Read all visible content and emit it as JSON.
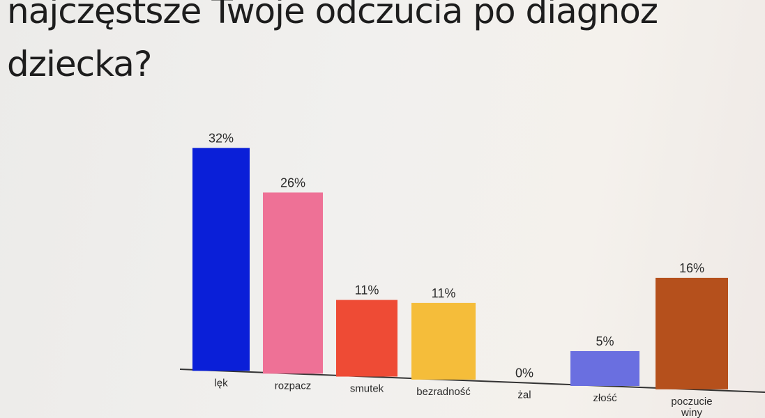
{
  "title_line1": "najczęstsze Twoje odczucia po diagnoz",
  "title_line2": "dziecka?",
  "chart_data": {
    "type": "bar",
    "title": "najczęstsze Twoje odczucia po diagnoz dziecka?",
    "categories": [
      "lęk",
      "rozpacz",
      "smutek",
      "bezradność",
      "żal",
      "złość",
      "poczucie winy"
    ],
    "category_lines": [
      [
        "lęk"
      ],
      [
        "rozpacz"
      ],
      [
        "smutek"
      ],
      [
        "bezradność"
      ],
      [
        "żal"
      ],
      [
        "złość"
      ],
      [
        "poczucie",
        "winy"
      ]
    ],
    "values": [
      32,
      26,
      11,
      11,
      0,
      5,
      16
    ],
    "value_labels": [
      "32%",
      "26%",
      "11%",
      "11%",
      "0%",
      "5%",
      "16%"
    ],
    "colors": [
      "#0a1fd8",
      "#ee7196",
      "#ee4b35",
      "#f5bd3a",
      "#cccccc",
      "#6a6fe0",
      "#b5501c"
    ],
    "ylim": [
      0,
      32
    ],
    "grid": false,
    "legend": "none"
  }
}
